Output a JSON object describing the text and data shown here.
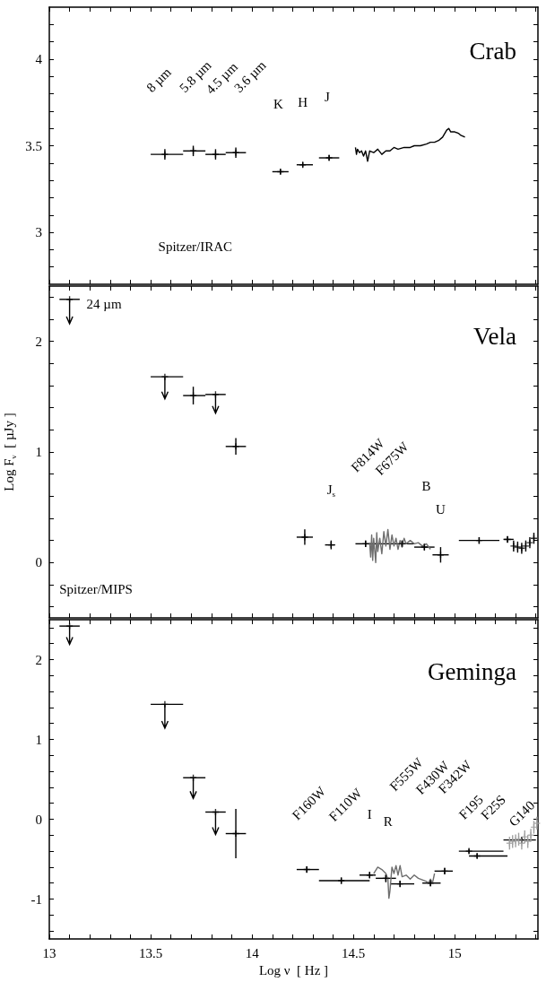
{
  "chart_data": [
    {
      "type": "scatter",
      "title": "Crab",
      "tick_labels": "y",
      "grid": false,
      "xlim": [
        13,
        15.41
      ],
      "xticks": [
        13,
        {
          "value": 13.1,
          "label": null
        },
        {
          "value": 13.2,
          "label": null
        },
        {
          "value": 13.3,
          "label": null
        },
        {
          "value": 13.4,
          "label": null
        },
        13.5,
        {
          "value": 13.6,
          "label": null
        },
        {
          "value": 13.7,
          "label": null
        },
        {
          "value": 13.8,
          "label": null
        },
        {
          "value": 13.9,
          "label": null
        },
        14,
        {
          "value": 14.1,
          "label": null
        },
        {
          "value": 14.2,
          "label": null
        },
        {
          "value": 14.3,
          "label": null
        },
        {
          "value": 14.4,
          "label": null
        },
        14.5,
        {
          "value": 14.6,
          "label": null
        },
        {
          "value": 14.7,
          "label": null
        },
        {
          "value": 14.8,
          "label": null
        },
        {
          "value": 14.9,
          "label": null
        },
        15,
        {
          "value": 15.1,
          "label": null
        },
        {
          "value": 15.2,
          "label": null
        },
        {
          "value": 15.3,
          "label": null
        },
        {
          "value": 15.4,
          "label": null
        }
      ],
      "ylim": [
        2.7,
        4.3
      ],
      "yticks": [
        {
          "value": 2.8,
          "label": null
        },
        {
          "value": 2.9,
          "label": null
        },
        3,
        {
          "value": 3.1,
          "label": null
        },
        {
          "value": 3.2,
          "label": null
        },
        {
          "value": 3.3,
          "label": null
        },
        {
          "value": 3.4,
          "label": null
        },
        3.5,
        {
          "value": 3.6,
          "label": null
        },
        {
          "value": 3.7,
          "label": null
        },
        {
          "value": 3.8,
          "label": null
        },
        {
          "value": 3.9,
          "label": null
        },
        4,
        {
          "value": 4.1,
          "label": null
        },
        {
          "value": 4.2,
          "label": null
        }
      ],
      "series": [
        {
          "marker": "cross",
          "color": "#000000",
          "x": [
            13.57,
            13.71,
            13.82,
            13.92,
            14.14,
            14.25,
            14.38
          ],
          "values": [
            3.45,
            3.47,
            3.45,
            3.46,
            3.35,
            3.39,
            3.43
          ],
          "xerrors": [
            [
              13.5,
              13.66
            ],
            [
              13.66,
              13.77
            ],
            [
              13.77,
              13.87
            ],
            [
              13.87,
              13.97
            ],
            [
              14.1,
              14.18
            ],
            [
              14.22,
              14.3
            ],
            [
              14.33,
              14.43
            ]
          ],
          "errors": [
            0.03,
            0.03,
            0.03,
            0.03,
            0.015,
            0.015,
            0.015
          ]
        },
        {
          "type": "line",
          "color": "#000000",
          "x": [
            14.51,
            14.515,
            14.52,
            14.53,
            14.54,
            14.55,
            14.56,
            14.57,
            14.58,
            14.6,
            14.62,
            14.64,
            14.66,
            14.68,
            14.7,
            14.72,
            14.75,
            14.78,
            14.8,
            14.83,
            14.86,
            14.88,
            14.9,
            14.92,
            14.94,
            14.96,
            14.97,
            14.98,
            15,
            15.02,
            15.03,
            15.05
          ],
          "values": [
            3.49,
            3.45,
            3.48,
            3.46,
            3.47,
            3.44,
            3.47,
            3.41,
            3.47,
            3.46,
            3.48,
            3.45,
            3.47,
            3.47,
            3.49,
            3.48,
            3.49,
            3.49,
            3.5,
            3.5,
            3.51,
            3.52,
            3.52,
            3.53,
            3.55,
            3.59,
            3.6,
            3.58,
            3.58,
            3.57,
            3.56,
            3.55
          ]
        }
      ],
      "annotations": [
        "8 µm",
        "5.8 µm",
        "4.5 µm",
        "3.6 µm",
        "K",
        "H",
        "J",
        "Spitzer/IRAC"
      ]
    },
    {
      "type": "scatter",
      "title": "Vela",
      "ylabel": "Log F$_{ν}$  [ µJy ]",
      "tick_labels": "y",
      "grid": false,
      "xlim": [
        13,
        15.41
      ],
      "xticks": [
        13,
        {
          "value": 13.1,
          "label": null
        },
        {
          "value": 13.2,
          "label": null
        },
        {
          "value": 13.3,
          "label": null
        },
        {
          "value": 13.4,
          "label": null
        },
        13.5,
        {
          "value": 13.6,
          "label": null
        },
        {
          "value": 13.7,
          "label": null
        },
        {
          "value": 13.8,
          "label": null
        },
        {
          "value": 13.9,
          "label": null
        },
        14,
        {
          "value": 14.1,
          "label": null
        },
        {
          "value": 14.2,
          "label": null
        },
        {
          "value": 14.3,
          "label": null
        },
        {
          "value": 14.4,
          "label": null
        },
        14.5,
        {
          "value": 14.6,
          "label": null
        },
        {
          "value": 14.7,
          "label": null
        },
        {
          "value": 14.8,
          "label": null
        },
        {
          "value": 14.9,
          "label": null
        },
        15,
        {
          "value": 15.1,
          "label": null
        },
        {
          "value": 15.2,
          "label": null
        },
        {
          "value": 15.3,
          "label": null
        },
        {
          "value": 15.4,
          "label": null
        }
      ],
      "ylim": [
        -0.5,
        2.5
      ],
      "yticks": [
        {
          "value": -0.4,
          "label": null
        },
        {
          "value": -0.2,
          "label": null
        },
        0,
        {
          "value": 0.2,
          "label": null
        },
        {
          "value": 0.4,
          "label": null
        },
        {
          "value": 0.6,
          "label": null
        },
        {
          "value": 0.8,
          "label": null
        },
        1,
        {
          "value": 1.2,
          "label": null
        },
        {
          "value": 1.4,
          "label": null
        },
        {
          "value": 1.6,
          "label": null
        },
        {
          "value": 1.8,
          "label": null
        },
        2,
        {
          "value": 2.2,
          "label": null
        },
        {
          "value": 2.4,
          "label": null
        }
      ],
      "series": [
        {
          "marker": "cross",
          "color": "#000000",
          "x": [
            13.1,
            13.57,
            13.82
          ],
          "values": [
            2.38,
            1.68,
            1.52
          ],
          "xerrors": [
            [
              13.05,
              13.15
            ],
            [
              13.5,
              13.66
            ],
            [
              13.77,
              13.87
            ]
          ],
          "errors": [
            [
              2.16,
              2.38
            ],
            [
              1.48,
              1.68
            ],
            [
              1.35,
              1.52
            ]
          ]
        },
        {
          "type": "line",
          "color": "#6e6e6e",
          "x": [
            14.58,
            14.585,
            14.59,
            14.595,
            14.6,
            14.61,
            14.615,
            14.62,
            14.63,
            14.64,
            14.65,
            14.66,
            14.67,
            14.68,
            14.69,
            14.7,
            14.71,
            14.72,
            14.73,
            14.74,
            14.75,
            14.76,
            14.78,
            14.8,
            14.82,
            14.84,
            14.86,
            14.88
          ],
          "values": [
            0.18,
            0.05,
            0.25,
            0.02,
            0.22,
            0,
            0.27,
            0.1,
            0.22,
            0.08,
            0.28,
            0.15,
            0.3,
            0.12,
            0.25,
            0.15,
            0.22,
            0.12,
            0.2,
            0.14,
            0.22,
            0.17,
            0.2,
            0.17,
            0.18,
            0.15,
            0.17,
            0.12
          ]
        },
        {
          "marker": "cross",
          "color": "#000000",
          "x": [
            13.71,
            13.92,
            14.26,
            14.39,
            14.56,
            14.74,
            14.85,
            14.93,
            15.12,
            15.26
          ],
          "values": [
            1.51,
            1.05,
            0.23,
            0.16,
            0.17,
            0.17,
            0.14,
            0.07,
            0.2,
            0.21
          ],
          "xerrors": [
            [
              13.66,
              13.77
            ],
            [
              13.87,
              13.97
            ],
            [
              14.22,
              14.3
            ],
            [
              14.36,
              14.41
            ],
            [
              14.51,
              14.62
            ],
            [
              14.62,
              14.8
            ],
            [
              14.8,
              14.9
            ],
            [
              14.89,
              14.97
            ],
            [
              15.02,
              15.22
            ],
            [
              15.24,
              15.29
            ]
          ],
          "errors": [
            0.08,
            0.075,
            0.07,
            0.04,
            0.03,
            0.03,
            0.03,
            0.07,
            0.03,
            0.03
          ]
        },
        {
          "marker": "cross",
          "color": "#000000",
          "x": [
            15.29,
            15.31,
            15.33,
            15.35,
            15.37,
            15.39
          ],
          "values": [
            0.15,
            0.14,
            0.13,
            0.15,
            0.18,
            0.22
          ],
          "errors": [
            0.05,
            0.05,
            0.05,
            0.05,
            0.05,
            0.05
          ]
        }
      ],
      "annotations": [
        "24 µm",
        "J$_{s}$",
        "F814W",
        "F675W",
        "B",
        "U",
        "Spitzer/MIPS"
      ]
    },
    {
      "type": "scatter",
      "title": "Geminga",
      "xlabel": "Log ν  [ Hz ]",
      "grid": false,
      "xlim": [
        13,
        15.41
      ],
      "xticks": [
        13,
        {
          "value": 13.1,
          "label": null
        },
        {
          "value": 13.2,
          "label": null
        },
        {
          "value": 13.3,
          "label": null
        },
        {
          "value": 13.4,
          "label": null
        },
        13.5,
        {
          "value": 13.6,
          "label": null
        },
        {
          "value": 13.7,
          "label": null
        },
        {
          "value": 13.8,
          "label": null
        },
        {
          "value": 13.9,
          "label": null
        },
        14,
        {
          "value": 14.1,
          "label": null
        },
        {
          "value": 14.2,
          "label": null
        },
        {
          "value": 14.3,
          "label": null
        },
        {
          "value": 14.4,
          "label": null
        },
        14.5,
        {
          "value": 14.6,
          "label": null
        },
        {
          "value": 14.7,
          "label": null
        },
        {
          "value": 14.8,
          "label": null
        },
        {
          "value": 14.9,
          "label": null
        },
        15,
        {
          "value": 15.1,
          "label": null
        },
        {
          "value": 15.2,
          "label": null
        },
        {
          "value": 15.3,
          "label": null
        },
        {
          "value": 15.4,
          "label": null
        }
      ],
      "ylim": [
        -1.5,
        2.5
      ],
      "yticks": [
        {
          "value": -1.4,
          "label": null
        },
        {
          "value": -1.2,
          "label": null
        },
        -1,
        {
          "value": -0.8,
          "label": null
        },
        {
          "value": -0.6,
          "label": null
        },
        {
          "value": -0.4,
          "label": null
        },
        {
          "value": -0.2,
          "label": null
        },
        0,
        {
          "value": 0.2,
          "label": null
        },
        {
          "value": 0.4,
          "label": null
        },
        {
          "value": 0.6,
          "label": null
        },
        {
          "value": 0.8,
          "label": null
        },
        1,
        {
          "value": 1.2,
          "label": null
        },
        {
          "value": 1.4,
          "label": null
        },
        {
          "value": 1.6,
          "label": null
        },
        {
          "value": 1.8,
          "label": null
        },
        2,
        {
          "value": 2.2,
          "label": null
        },
        {
          "value": 2.4,
          "label": null
        }
      ],
      "series": [
        {
          "marker": "cross",
          "color": "#000000",
          "x": [
            13.1,
            13.57,
            13.71,
            13.82
          ],
          "values": [
            2.42,
            1.44,
            0.52,
            0.09
          ],
          "xerrors": [
            [
              13.05,
              13.15
            ],
            [
              13.5,
              13.66
            ],
            [
              13.66,
              13.77
            ],
            [
              13.77,
              13.87
            ]
          ],
          "errors": [
            [
              2.19,
              2.42
            ],
            [
              1.14,
              1.44
            ],
            [
              0.26,
              0.52
            ],
            [
              -0.19,
              0.09
            ]
          ]
        },
        {
          "type": "line",
          "color": "#6e6e6e",
          "x": [
            14.6,
            14.62,
            14.64,
            14.66,
            14.67,
            14.675,
            14.68,
            14.69,
            14.7,
            14.71,
            14.72,
            14.73,
            14.74,
            14.76,
            14.78,
            14.8,
            14.82,
            14.84,
            14.86,
            14.87,
            14.88,
            14.89,
            14.9
          ],
          "values": [
            -0.68,
            -0.6,
            -0.63,
            -0.68,
            -0.75,
            -0.99,
            -0.9,
            -0.6,
            -0.68,
            -0.58,
            -0.7,
            -0.58,
            -0.72,
            -0.7,
            -0.75,
            -0.7,
            -0.74,
            -0.76,
            -0.78,
            -0.8,
            -0.75,
            -0.8,
            -0.68
          ]
        },
        {
          "marker": "cross",
          "color": "#000000",
          "x": [
            13.92,
            14.27,
            14.44,
            14.58,
            14.66,
            14.73,
            14.88,
            14.95,
            15.07,
            15.11,
            15.33
          ],
          "values": [
            -0.18,
            -0.63,
            -0.77,
            -0.7,
            -0.74,
            -0.81,
            -0.8,
            -0.65,
            -0.4,
            -0.46,
            -0.26
          ],
          "xerrors": [
            [
              13.87,
              13.97
            ],
            [
              14.22,
              14.33
            ],
            [
              14.33,
              14.58
            ],
            [
              14.53,
              14.61
            ],
            [
              14.61,
              14.71
            ],
            [
              14.68,
              14.8
            ],
            [
              14.84,
              14.93
            ],
            [
              14.9,
              14.99
            ],
            [
              15.02,
              15.24
            ],
            [
              15.07,
              15.26
            ],
            [
              15.24,
              15.4
            ]
          ],
          "errors": [
            [
              -0.49,
              0.13
            ],
            0.04,
            0.04,
            0.04,
            0.05,
            0.04,
            0.04,
            0.04,
            0.03,
            0.03,
            0.03
          ]
        },
        {
          "marker": "cross",
          "color": "#a0a0a0",
          "x": [
            15.27,
            15.285,
            15.3,
            15.315,
            15.33,
            15.345,
            15.36,
            15.375,
            15.39,
            15.405
          ],
          "values": [
            -0.3,
            -0.28,
            -0.27,
            -0.25,
            -0.3,
            -0.22,
            -0.28,
            -0.2,
            -0.1,
            -0.05
          ],
          "errors": [
            0.08,
            0.08,
            0.08,
            0.08,
            0.08,
            0.08,
            0.08,
            0.08,
            0.08,
            0.08
          ]
        }
      ],
      "annotations": [
        "F160W",
        "F110W",
        "I",
        "R",
        "F555W",
        "F430W",
        "F342W",
        "F195",
        "F25S",
        "G140"
      ]
    }
  ]
}
